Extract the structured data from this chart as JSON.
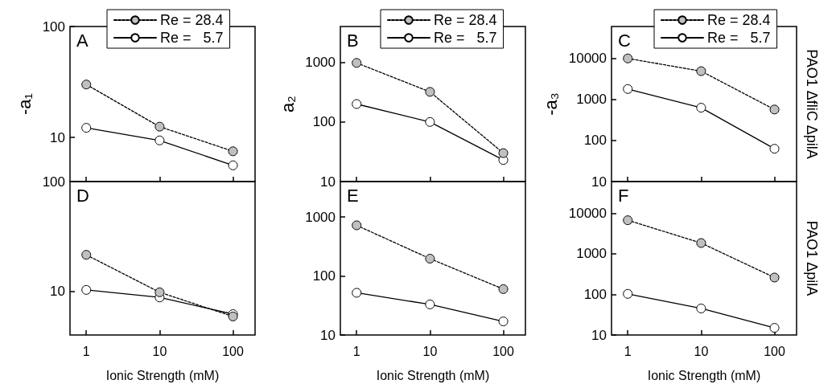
{
  "chart_data": [
    {
      "type": "line",
      "ylabel": "-a₁",
      "annotations": [
        "A"
      ],
      "x": [
        1,
        10,
        100
      ],
      "xlim": [
        0.6,
        200
      ],
      "xticks": [
        1,
        10,
        100
      ],
      "ylim": [
        4,
        100
      ],
      "yticks": [
        10,
        100
      ],
      "log": "xy",
      "tick_labels": "y",
      "legend": "top",
      "marker": "circle",
      "series": [
        {
          "name": "Re = 28.4",
          "color": "#c0c0c0",
          "line_style": "dashed",
          "values": [
            30,
            12.5,
            7.5
          ]
        },
        {
          "name": "Re =   5.7",
          "color": "#ffffff",
          "line_style": "solid",
          "values": [
            12.2,
            9.4,
            5.6
          ]
        }
      ]
    },
    {
      "type": "line",
      "ylabel": "a₂",
      "annotations": [
        "B"
      ],
      "x": [
        1,
        10,
        100
      ],
      "xlim": [
        0.6,
        200
      ],
      "xticks": [
        1,
        10,
        100
      ],
      "ylim": [
        10,
        4000
      ],
      "yticks": [
        10,
        100,
        1000
      ],
      "log": "xy",
      "tick_labels": "y",
      "legend": "top",
      "marker": "circle",
      "series": [
        {
          "name": "Re = 28.4",
          "color": "#c0c0c0",
          "line_style": "dashed",
          "values": [
            980,
            320,
            30
          ]
        },
        {
          "name": "Re =   5.7",
          "color": "#ffffff",
          "line_style": "solid",
          "values": [
            200,
            100,
            23
          ]
        }
      ]
    },
    {
      "type": "line",
      "ylabel": "-a₃",
      "annotations": [
        "C",
        "PAO1 ΔfliC ΔpilA"
      ],
      "x": [
        1,
        10,
        100
      ],
      "xlim": [
        0.6,
        200
      ],
      "xticks": [
        1,
        10,
        100
      ],
      "ylim": [
        10,
        60000
      ],
      "yticks": [
        10,
        100,
        1000,
        10000
      ],
      "log": "xy",
      "tick_labels": "y",
      "legend": "top",
      "marker": "circle",
      "series": [
        {
          "name": "Re = 28.4",
          "color": "#c0c0c0",
          "line_style": "dashed",
          "values": [
            10000,
            4900,
            570
          ]
        },
        {
          "name": "Re =   5.7",
          "color": "#ffffff",
          "line_style": "solid",
          "values": [
            1800,
            630,
            63
          ]
        }
      ]
    },
    {
      "type": "line",
      "xlabel": "Ionic Strength (mM)",
      "annotations": [
        "D"
      ],
      "x": [
        1,
        10,
        100
      ],
      "xlim": [
        0.6,
        200
      ],
      "xticks": [
        1,
        10,
        100
      ],
      "ylim": [
        4,
        100
      ],
      "yticks": [
        10,
        100
      ],
      "log": "xy",
      "marker": "circle",
      "series": [
        {
          "color": "#c0c0c0",
          "line_style": "dashed",
          "values": [
            21.5,
            9.8,
            5.9
          ]
        },
        {
          "color": "#ffffff",
          "line_style": "solid",
          "values": [
            10.3,
            8.8,
            6.2
          ]
        }
      ]
    },
    {
      "type": "line",
      "xlabel": "Ionic Strength (mM)",
      "annotations": [
        "E"
      ],
      "x": [
        1,
        10,
        100
      ],
      "xlim": [
        0.6,
        200
      ],
      "xticks": [
        1,
        10,
        100
      ],
      "ylim": [
        10,
        4000
      ],
      "yticks": [
        10,
        100,
        1000
      ],
      "log": "xy",
      "marker": "circle",
      "series": [
        {
          "color": "#c0c0c0",
          "line_style": "dashed",
          "values": [
            725,
            197,
            60
          ]
        },
        {
          "color": "#ffffff",
          "line_style": "solid",
          "values": [
            52,
            33,
            17
          ]
        }
      ]
    },
    {
      "type": "line",
      "xlabel": "Ionic Strength (mM)",
      "annotations": [
        "F",
        "PAO1 ΔpilA"
      ],
      "x": [
        1,
        10,
        100
      ],
      "xlim": [
        0.6,
        200
      ],
      "xticks": [
        1,
        10,
        100
      ],
      "ylim": [
        10,
        60000
      ],
      "yticks": [
        10,
        100,
        1000,
        10000
      ],
      "log": "xy",
      "marker": "circle",
      "series": [
        {
          "color": "#c0c0c0",
          "line_style": "dashed",
          "values": [
            6700,
            1840,
            260
          ]
        },
        {
          "color": "#ffffff",
          "line_style": "solid",
          "values": [
            103,
            45,
            15
          ]
        }
      ]
    }
  ]
}
